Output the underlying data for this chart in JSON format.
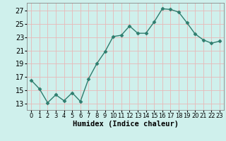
{
  "x": [
    0,
    1,
    2,
    3,
    4,
    5,
    6,
    7,
    8,
    9,
    10,
    11,
    12,
    13,
    14,
    15,
    16,
    17,
    18,
    19,
    20,
    21,
    22,
    23
  ],
  "y": [
    16.5,
    15.2,
    13.1,
    14.3,
    13.4,
    14.6,
    13.3,
    16.7,
    19.0,
    20.8,
    23.1,
    23.3,
    24.7,
    23.6,
    23.6,
    25.3,
    27.3,
    27.2,
    26.8,
    25.2,
    23.5,
    22.6,
    22.1,
    22.4
  ],
  "line_color": "#2e7d6e",
  "marker": "D",
  "marker_size": 2.5,
  "bg_color": "#cff0ec",
  "grid_color": "#e8b8b8",
  "xlabel": "Humidex (Indice chaleur)",
  "yticks": [
    13,
    15,
    17,
    19,
    21,
    23,
    25,
    27
  ],
  "xtick_labels": [
    "0",
    "1",
    "2",
    "3",
    "4",
    "5",
    "6",
    "7",
    "8",
    "9",
    "10",
    "11",
    "12",
    "13",
    "14",
    "15",
    "16",
    "17",
    "18",
    "19",
    "20",
    "21",
    "22",
    "23"
  ],
  "ylim": [
    12.0,
    28.2
  ],
  "xlim": [
    -0.5,
    23.5
  ],
  "xlabel_fontsize": 7.5,
  "tick_fontsize": 7,
  "line_width": 1.0,
  "spine_color": "#888888"
}
